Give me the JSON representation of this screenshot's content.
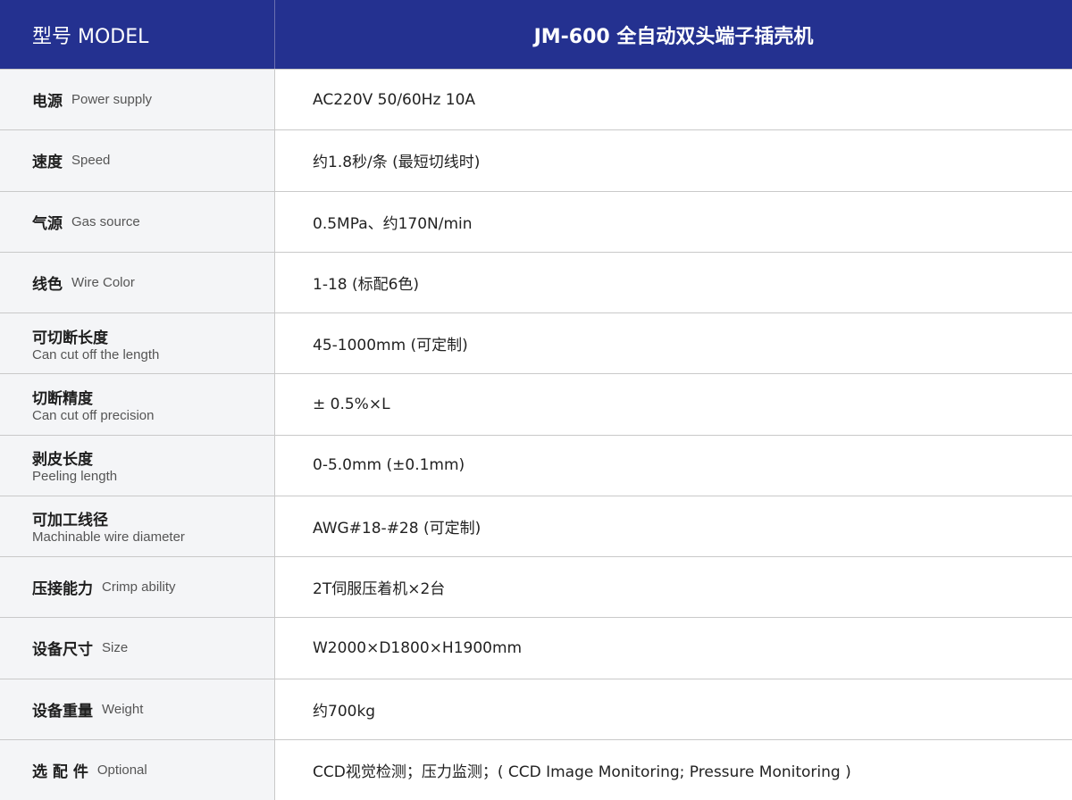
{
  "header": {
    "model_label": "型号 MODEL",
    "model_value": "JM-600 全自动双头端子插壳机"
  },
  "colors": {
    "header_bg": "#243190",
    "label_bg": "#f4f5f7",
    "border": "#c9c9c9"
  },
  "rows": [
    {
      "cn": "电源",
      "en": "Power supply",
      "value": "AC220V 50/60Hz 10A",
      "stacked": false
    },
    {
      "cn": "速度",
      "en": "Speed",
      "value": "约1.8秒/条 (最短切线时)",
      "stacked": false
    },
    {
      "cn": "气源",
      "en": "Gas source",
      "value": "0.5MPa、约170N/min",
      "stacked": false
    },
    {
      "cn": "线色",
      "en": "Wire Color",
      "value": "1-18 (标配6色)",
      "stacked": false
    },
    {
      "cn": "可切断长度",
      "en": "Can cut off the length",
      "value": "45-1000mm (可定制)",
      "stacked": true
    },
    {
      "cn": "切断精度",
      "en": "Can cut off precision",
      "value": "± 0.5%×L",
      "stacked": true
    },
    {
      "cn": "剥皮长度",
      "en": "Peeling length",
      "value": "0-5.0mm (±0.1mm)",
      "stacked": true
    },
    {
      "cn": "可加工线径",
      "en": "Machinable wire diameter",
      "value": "AWG#18-#28 (可定制)",
      "stacked": true
    },
    {
      "cn": "压接能力",
      "en": "Crimp ability",
      "value": "2T伺服压着机×2台",
      "stacked": false
    },
    {
      "cn": "设备尺寸",
      "en": "Size",
      "value": "W2000×D1800×H1900mm",
      "stacked": false
    },
    {
      "cn": "设备重量",
      "en": "Weight",
      "value": "约700kg",
      "stacked": false
    },
    {
      "cn": "选 配 件",
      "en": "Optional",
      "value": "CCD视觉检测；压力监测；( CCD Image Monitoring; Pressure Monitoring )",
      "stacked": false
    }
  ]
}
